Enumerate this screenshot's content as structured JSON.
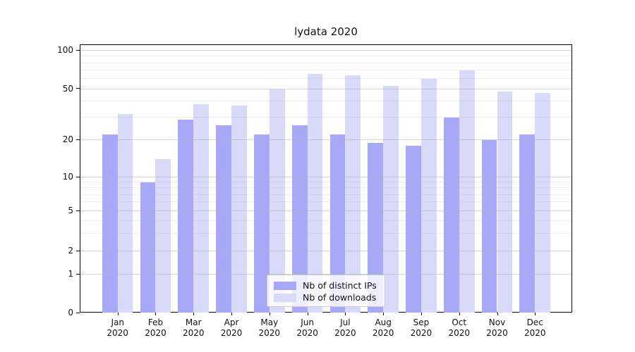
{
  "title": "lydata 2020",
  "chart_data": {
    "type": "bar",
    "title": "lydata 2020",
    "categories": [
      "Jan 2020",
      "Feb 2020",
      "Mar 2020",
      "Apr 2020",
      "May 2020",
      "Jun 2020",
      "Jul 2020",
      "Aug 2020",
      "Sep 2020",
      "Oct 2020",
      "Nov 2020",
      "Dec 2020"
    ],
    "x_months": [
      "Jan",
      "Feb",
      "Mar",
      "Apr",
      "May",
      "Jun",
      "Jul",
      "Aug",
      "Sep",
      "Oct",
      "Nov",
      "Dec"
    ],
    "x_year": "2020",
    "series": [
      {
        "name": "Nb of distinct IPs",
        "color": "#a8a8f8",
        "values": [
          22,
          9,
          29,
          26,
          22,
          26,
          22,
          19,
          18,
          30,
          20,
          22
        ]
      },
      {
        "name": "Nb of downloads",
        "color": "#d9d9fa",
        "values": [
          32,
          14,
          38,
          37,
          50,
          66,
          64,
          53,
          60,
          70,
          48,
          47
        ]
      }
    ],
    "xlabel": "",
    "ylabel": "",
    "yscale": "symlog",
    "yticks": [
      0,
      1,
      2,
      5,
      10,
      20,
      50,
      100
    ],
    "yticks_minor": [
      3,
      4,
      6,
      7,
      8,
      9,
      30,
      40,
      60,
      70,
      80,
      90
    ],
    "ylim": [
      0,
      110
    ],
    "grid": true,
    "legend_position": "lower center"
  }
}
